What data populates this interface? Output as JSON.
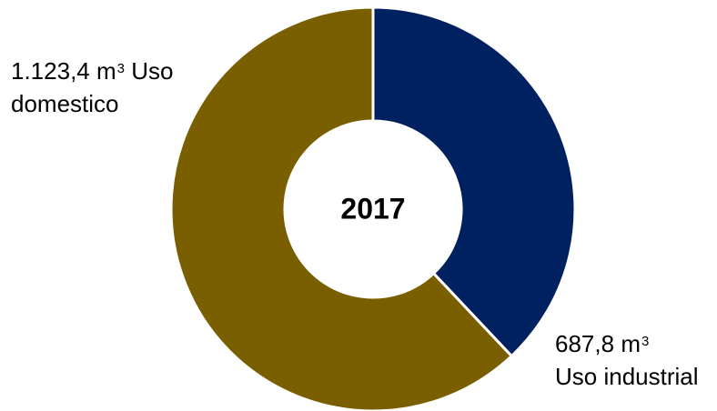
{
  "chart_data": {
    "type": "pie",
    "donut": true,
    "center_label": "2017",
    "categories": [
      "Uso industrial",
      "Uso domestico"
    ],
    "values": [
      687.8,
      1123.4
    ],
    "value_labels": [
      "687,8",
      "1.123,4"
    ],
    "unit_base": "m",
    "unit_exponent": "3",
    "colors": [
      "#00215F",
      "#7A5F00"
    ],
    "legend": "none"
  }
}
